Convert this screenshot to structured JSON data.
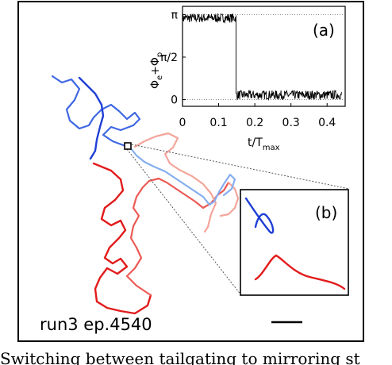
{
  "main_figure": {
    "run_label": "run3 ep.4540",
    "trajectory_colors": {
      "blue_dark": "#1f3fd6",
      "blue_mid": "#3f67e3",
      "blue_light": "#85aef0",
      "red_dark": "#e21b1b",
      "red_mid": "#ec5a55",
      "red_light": "#f4a59a"
    }
  },
  "chart_data": [
    {
      "type": "line",
      "panel_label": "(a)",
      "title": "",
      "xlabel_main": "t/T",
      "xlabel_sub": "max",
      "ylabel_main": "Φ",
      "ylabel_sub1": "e",
      "ylabel_plus": "+Φ",
      "ylabel_sub2": "p",
      "xlim": [
        0,
        0.45
      ],
      "ylim": [
        -0.25,
        3.45
      ],
      "x_ticks": [
        0,
        0.1,
        0.2,
        0.3,
        0.4
      ],
      "x_tick_labels": [
        "0",
        "0.1",
        "0.2",
        "0.3",
        "0.4"
      ],
      "y_ticks": [
        0,
        1.5708,
        3.1416
      ],
      "y_tick_labels": [
        "0",
        "π/2",
        "π"
      ],
      "reference_lines": [
        0,
        3.1416
      ],
      "series": [
        {
          "color": "#000000",
          "segments": [
            {
              "x_start": 0.0,
              "x_end": 0.148,
              "level": 3.02,
              "noise": 0.17
            },
            {
              "x_start": 0.148,
              "x_end": 0.44,
              "level": 0.17,
              "noise": 0.17
            }
          ],
          "switch_x": 0.148
        }
      ]
    }
  ],
  "inset_b": {
    "panel_label": "(b)"
  },
  "caption": "Switching between tailgating to mirroring st"
}
